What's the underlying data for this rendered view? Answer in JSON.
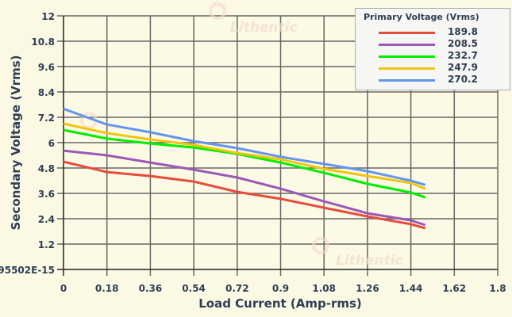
{
  "chart_data": {
    "type": "line",
    "xlabel": "Load Current (Amp-rms)",
    "ylabel": "Secondary Voltage (Vrms)",
    "xlim": [
      0,
      1.8
    ],
    "ylim": [
      0,
      12
    ],
    "x_ticks": [
      "0",
      "0.18",
      "0.36",
      "0.54",
      "0.72",
      "0.9",
      "1.08",
      "1.26",
      "1.44",
      "1.62",
      "1.8"
    ],
    "y_ticks": [
      "95502E-15",
      "1.2",
      "2.4",
      "3.6",
      "4.8",
      "6",
      "7.2",
      "8.4",
      "9.6",
      "10.8",
      "12"
    ],
    "grid": true,
    "legend_title": "Primary Voltage (Vrms)",
    "legend_position": "top-right",
    "watermark": "Lithentic",
    "x": [
      0,
      0.18,
      0.36,
      0.54,
      0.72,
      0.9,
      1.08,
      1.26,
      1.44,
      1.5
    ],
    "series": [
      {
        "name": "189.8",
        "color": "#e74c3c",
        "values": [
          5.1,
          4.61,
          4.42,
          4.16,
          3.67,
          3.34,
          2.92,
          2.51,
          2.14,
          1.95
        ]
      },
      {
        "name": "208.5",
        "color": "#9b59b6",
        "values": [
          5.62,
          5.4,
          5.06,
          4.72,
          4.35,
          3.82,
          3.22,
          2.66,
          2.32,
          2.1
        ]
      },
      {
        "name": "232.7",
        "color": "#00ee00",
        "values": [
          6.6,
          6.19,
          5.96,
          5.77,
          5.47,
          5.06,
          4.57,
          4.05,
          3.64,
          3.41
        ]
      },
      {
        "name": "247.9",
        "color": "#f1c40f",
        "values": [
          6.9,
          6.45,
          6.15,
          5.89,
          5.51,
          5.21,
          4.76,
          4.42,
          4.09,
          3.82
        ]
      },
      {
        "name": "270.2",
        "color": "#6495ed",
        "values": [
          7.6,
          6.86,
          6.49,
          6.07,
          5.74,
          5.33,
          4.99,
          4.65,
          4.2,
          4.0
        ]
      }
    ]
  }
}
